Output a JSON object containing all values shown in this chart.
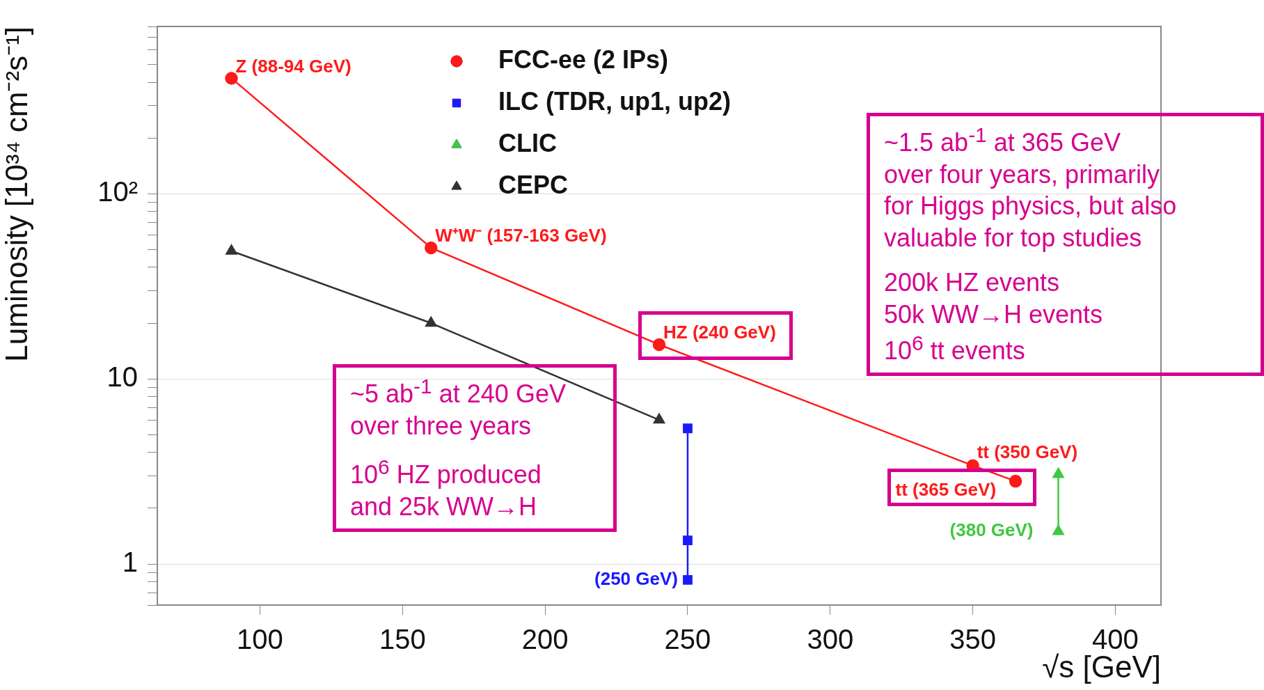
{
  "chart_data": {
    "type": "line",
    "xlabel": "√s [GeV]",
    "ylabel": "Luminosity [10³⁴ cm⁻²s⁻¹]",
    "log": "y",
    "xlim": [
      64,
      416
    ],
    "xticks": [
      100,
      150,
      200,
      250,
      300,
      350,
      400
    ],
    "ylim": [
      0.6,
      800
    ],
    "yticks": [
      {
        "value": 0.6,
        "label": null
      },
      {
        "value": 0.7,
        "label": null
      },
      {
        "value": 0.8,
        "label": null
      },
      {
        "value": 0.9,
        "label": null
      },
      1,
      {
        "value": 2,
        "label": null
      },
      {
        "value": 3,
        "label": null
      },
      {
        "value": 4,
        "label": null
      },
      {
        "value": 5,
        "label": null
      },
      {
        "value": 6,
        "label": null
      },
      {
        "value": 7,
        "label": null
      },
      {
        "value": 8,
        "label": null
      },
      {
        "value": 9,
        "label": null
      },
      10,
      {
        "value": 20,
        "label": null
      },
      {
        "value": 30,
        "label": null
      },
      {
        "value": 40,
        "label": null
      },
      {
        "value": 50,
        "label": null
      },
      {
        "value": 60,
        "label": null
      },
      {
        "value": 70,
        "label": null
      },
      {
        "value": 80,
        "label": null
      },
      {
        "value": 90,
        "label": null
      },
      {
        "value": 100,
        "label": "10²"
      },
      {
        "value": 200,
        "label": null
      },
      {
        "value": 300,
        "label": null
      },
      {
        "value": 400,
        "label": null
      },
      {
        "value": 500,
        "label": null
      },
      {
        "value": 600,
        "label": null
      },
      {
        "value": 700,
        "label": null
      },
      {
        "value": 800,
        "label": null
      }
    ],
    "grid": "y",
    "legend": "top",
    "line_style": "solid",
    "series": [
      {
        "name": "FCC-ee (2 IPs)",
        "color": "#ff1a1a",
        "marker": "circle",
        "x": [
          90,
          160,
          240,
          350,
          365
        ],
        "values": [
          420,
          51,
          15.3,
          3.4,
          2.8
        ]
      },
      {
        "name": "ILC (TDR, up1, up2)",
        "color": "#1a1aff",
        "marker": "square",
        "x": [
          250,
          250,
          250
        ],
        "values": [
          5.4,
          1.34,
          0.82
        ]
      },
      {
        "name": "CLIC",
        "color": "#40c840",
        "marker": "triangle",
        "x": [
          380,
          380
        ],
        "values": [
          1.5,
          3.05
        ]
      },
      {
        "name": "CEPC",
        "color": "#333333",
        "marker": "triangle",
        "x": [
          90,
          160,
          240
        ],
        "values": [
          49,
          20,
          6.0
        ]
      }
    ],
    "annotations": [
      {
        "text": "Z (88-94 GeV)",
        "x": 90,
        "y": 420
      },
      {
        "text": "W⁺W⁻ (157-163 GeV)",
        "x": 160,
        "y": 51
      },
      {
        "text": "HZ (240 GeV)",
        "x": 240,
        "y": 15.3
      },
      {
        "text": "tt (350 GeV)",
        "x": 350,
        "y": 3.4
      },
      {
        "text": "tt (365 GeV)",
        "x": 365,
        "y": 2.8
      },
      {
        "text": "(250 GeV)",
        "x": 250,
        "y": 0.82
      },
      {
        "text": "(380 GeV)",
        "x": 380,
        "y": 1.5
      },
      "~5 ab$^{-1}$ at 240 GeV\nover three years\n\n10$^{6}$ HZ produced\nand 25k WW→H",
      "~1.5 ab$^{-1}$ at 365 GeV\nover four years, primarily\nfor Higgs physics, but also\nvaluable for top studies\n\n200k HZ events\n50k WW→H events\n10$^{6}$ tt events"
    ]
  }
}
